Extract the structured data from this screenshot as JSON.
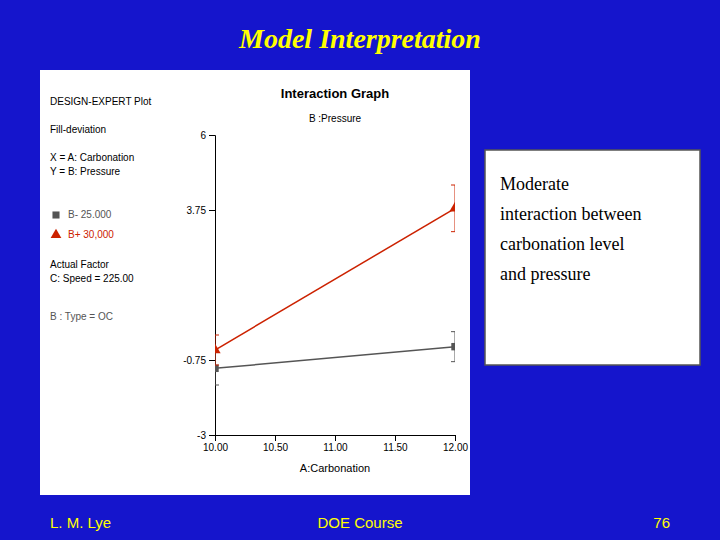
{
  "title": "Model Interpretation",
  "footers": [
    "L. M. Lye",
    "DOE Course",
    "76"
  ],
  "text_box": [
    "Moderate",
    "interaction between",
    "carbonation level",
    "and pressure"
  ],
  "chart_data": {
    "type": "line",
    "title": "Interaction Graph",
    "subtitle": "B :Pressure",
    "x_label": "A:Carbonation",
    "annotations": [
      "DESIGN-EXPERT Plot",
      "Fill-deviation",
      "X = A: Carbonation",
      "Y = B: Pressure",
      "Actual Factor",
      "C: Speed = 225.00",
      "B : Type = OC"
    ],
    "x": [
      10.0,
      12.0
    ],
    "series": [
      {
        "name": "B- 25.000",
        "color": "#555555",
        "marker": "square",
        "values": [
          -1.0,
          -0.35
        ],
        "errors": [
          0.5,
          0.45
        ]
      },
      {
        "name": "B+ 30,000",
        "color": "#CC2200",
        "marker": "triangle",
        "values": [
          -0.45,
          3.8
        ],
        "errors": [
          0.45,
          0.7
        ]
      }
    ],
    "xlim": [
      10.0,
      12.0
    ],
    "ylim": [
      -3,
      6
    ],
    "xticks": [
      {
        "value": 10.0,
        "label": "10.00"
      },
      {
        "value": 10.5,
        "label": "10.50"
      },
      {
        "value": 11.0,
        "label": "11.00"
      },
      {
        "value": 11.5,
        "label": "11.50"
      },
      {
        "value": 12.0,
        "label": "12.00"
      }
    ],
    "yticks": [
      -3,
      -0.75,
      3.75,
      6
    ],
    "legend": "left"
  }
}
